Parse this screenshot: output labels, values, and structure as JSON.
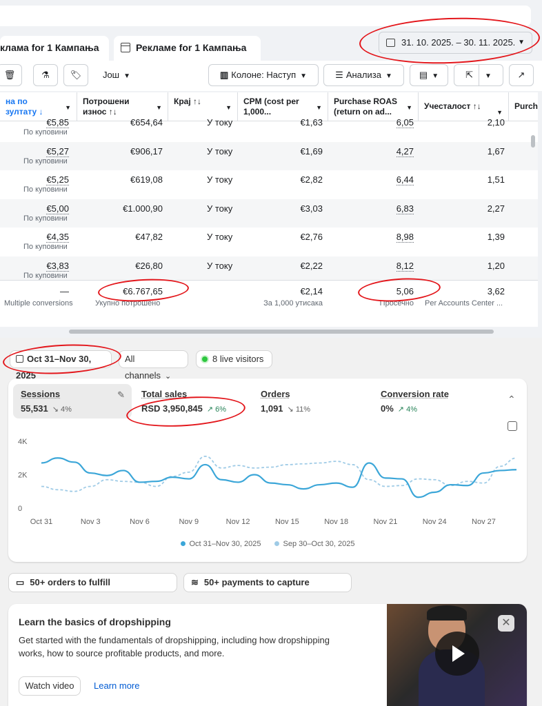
{
  "meta_ads": {
    "tabs": [
      "клама for 1 Кампања",
      "Рекламе for 1 Кампања"
    ],
    "date_range": "31. 10. 2025. – 30. 11. 2025.",
    "toolbar": {
      "more_label": "Још",
      "columns_label": "Колоне: Наступ",
      "analysis_label": "Анализа"
    },
    "columns": [
      {
        "label": "на по\nзултату ↓"
      },
      {
        "label": "Потрошени\nизнос ↑↓"
      },
      {
        "label": "Крај ↑↓"
      },
      {
        "label": "CPM (cost per\n1,000..."
      },
      {
        "label": "Purchase ROAS\n(return on ad..."
      },
      {
        "label": "Учесталост ↑↓"
      },
      {
        "label": "Purch"
      }
    ],
    "rows": [
      {
        "result": "€5,85",
        "result_sub": "По куповини",
        "spend": "€654,64",
        "end": "У току",
        "cpm": "€1,63",
        "roas": "6,05",
        "freq": "2,10"
      },
      {
        "result": "€5,27",
        "result_sub": "По куповини",
        "spend": "€906,17",
        "end": "У току",
        "cpm": "€1,69",
        "roas": "4,27",
        "freq": "1,67"
      },
      {
        "result": "€5,25",
        "result_sub": "По куповини",
        "spend": "€619,08",
        "end": "У току",
        "cpm": "€2,82",
        "roas": "6,44",
        "freq": "1,51"
      },
      {
        "result": "€5,00",
        "result_sub": "По куповини",
        "spend": "€1.000,90",
        "end": "У току",
        "cpm": "€3,03",
        "roas": "6,83",
        "freq": "2,27"
      },
      {
        "result": "€4,35",
        "result_sub": "По куповини",
        "spend": "€47,82",
        "end": "У току",
        "cpm": "€2,76",
        "roas": "8,98",
        "freq": "1,39"
      },
      {
        "result": "€3,83",
        "result_sub": "По куповини",
        "spend": "€26,80",
        "end": "У току",
        "cpm": "€2,22",
        "roas": "8,12",
        "freq": "1,20"
      }
    ],
    "summary": {
      "result": "—",
      "result_sub": "Multiple conversions",
      "spend": "€6.767,65",
      "spend_sub": "Укупно потрошено",
      "cpm": "€2,14",
      "cpm_sub": "За 1,000 утисака",
      "roas": "5,06",
      "roas_sub": "Просечно",
      "freq": "3,62",
      "freq_sub": "Per Accounts Center ..."
    }
  },
  "shopify": {
    "date_filter": "Oct 31–Nov 30, 2025",
    "channels_filter": "All channels",
    "live_visitors": "8 live visitors",
    "metrics": [
      {
        "label": "Sessions",
        "value": "55,531",
        "change": "↘ 4%",
        "trend": "down"
      },
      {
        "label": "Total sales",
        "value": "RSD 3,950,845",
        "change": "↗ 6%",
        "trend": "up"
      },
      {
        "label": "Orders",
        "value": "1,091",
        "change": "↘ 11%",
        "trend": "down"
      },
      {
        "label": "Conversion rate",
        "value": "0%",
        "change": "↗ 4%",
        "trend": "up"
      }
    ],
    "fulfill_label": "50+ orders to fulfill",
    "payments_label": "50+ payments to capture",
    "learn": {
      "title": "Learn the basics of dropshipping",
      "body": "Get started with the fundamentals of dropshipping, including how dropshipping works, how to source profitable products, and more.",
      "watch_label": "Watch video",
      "learn_more_label": "Learn more"
    }
  },
  "chart_data": {
    "type": "line",
    "title": "",
    "xlabel": "",
    "ylabel": "",
    "ylim": [
      0,
      4000
    ],
    "yticks": [
      "4K",
      "2K",
      "0"
    ],
    "xtick_labels": [
      "Oct 31",
      "Nov 3",
      "Nov 6",
      "Nov 9",
      "Nov 12",
      "Nov 15",
      "Nov 18",
      "Nov 21",
      "Nov 24",
      "Nov 27"
    ],
    "colors": {
      "current": "#3ba6d8",
      "previous": "#9fcbe6"
    },
    "series": [
      {
        "name": "Oct 31–Nov 30, 2025",
        "style": "solid",
        "values": [
          2700,
          3000,
          2750,
          2100,
          1950,
          2250,
          1550,
          1600,
          1850,
          1750,
          2600,
          1700,
          1550,
          2000,
          1500,
          1400,
          1150,
          1400,
          1500,
          1250,
          2700,
          1800,
          1750,
          650,
          950,
          1400,
          1350,
          2100,
          2250,
          2300
        ]
      },
      {
        "name": "Sep 30–Oct 30, 2025",
        "style": "dashed",
        "values": [
          1300,
          1100,
          1000,
          1300,
          1700,
          1600,
          1550,
          1300,
          1900,
          2150,
          3100,
          2400,
          2550,
          2400,
          2450,
          2600,
          2650,
          2700,
          2800,
          2600,
          1700,
          1300,
          1350,
          1750,
          1700,
          1350,
          1600,
          1500,
          2500,
          3000
        ]
      }
    ]
  }
}
